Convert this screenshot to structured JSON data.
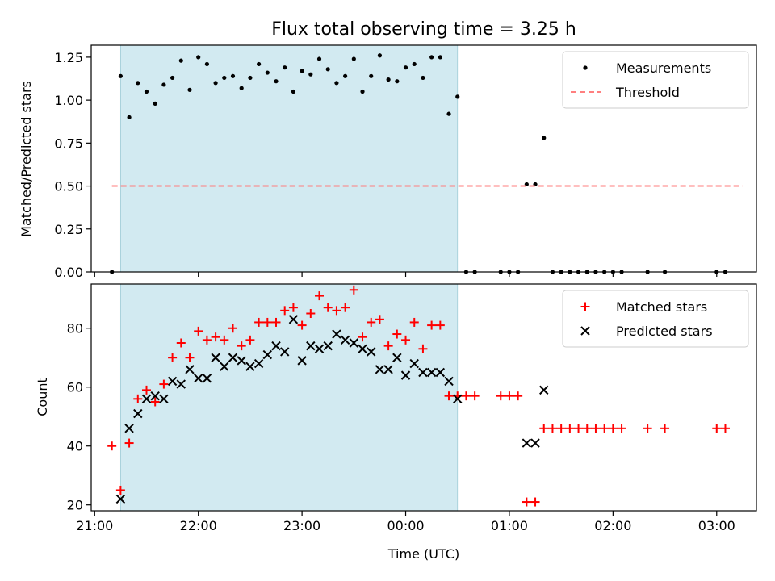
{
  "chart_data": [
    {
      "type": "scatter",
      "title": "Flux total observing time = 3.25 h",
      "ylabel": "Matched/Predicted stars",
      "ylim": [
        0,
        1.32
      ],
      "yticks": [
        0.0,
        0.25,
        0.5,
        0.75,
        1.0,
        1.25
      ],
      "ytick_labels": [
        "0.00",
        "0.25",
        "0.50",
        "0.75",
        "1.00",
        "1.25"
      ],
      "xlim": [
        "20:58",
        "03:23"
      ],
      "xticks": [
        "21:00",
        "22:00",
        "23:00",
        "00:00",
        "01:00",
        "02:00",
        "03:00"
      ],
      "xtick_labels": [],
      "grid": false,
      "legend": "upper right",
      "shaded_interval": {
        "x0": "21:15",
        "x1": "00:30",
        "color": "#add8e6"
      },
      "series": [
        {
          "name": "Measurements",
          "marker": "dot",
          "color": "#000000",
          "x": [
            "21:10",
            "21:15",
            "21:20",
            "21:25",
            "21:30",
            "21:35",
            "21:40",
            "21:45",
            "21:50",
            "21:55",
            "22:00",
            "22:05",
            "22:10",
            "22:15",
            "22:20",
            "22:25",
            "22:30",
            "22:35",
            "22:40",
            "22:45",
            "22:50",
            "22:55",
            "23:00",
            "23:05",
            "23:10",
            "23:15",
            "23:20",
            "23:25",
            "23:30",
            "23:35",
            "23:40",
            "23:45",
            "23:50",
            "23:55",
            "00:00",
            "00:05",
            "00:10",
            "00:15",
            "00:20",
            "00:25",
            "00:30",
            "00:35",
            "00:40",
            "00:55",
            "01:00",
            "01:05",
            "01:10",
            "01:15",
            "01:20",
            "01:25",
            "01:30",
            "01:35",
            "01:40",
            "01:45",
            "01:50",
            "01:55",
            "02:00",
            "02:05",
            "02:20",
            "02:30",
            "03:00",
            "03:05"
          ],
          "y": [
            0.0,
            1.14,
            0.9,
            1.1,
            1.05,
            0.98,
            1.09,
            1.13,
            1.23,
            1.06,
            1.25,
            1.21,
            1.1,
            1.13,
            1.14,
            1.07,
            1.13,
            1.21,
            1.16,
            1.11,
            1.19,
            1.05,
            1.17,
            1.15,
            1.24,
            1.18,
            1.1,
            1.14,
            1.24,
            1.05,
            1.14,
            1.26,
            1.12,
            1.11,
            1.19,
            1.21,
            1.13,
            1.25,
            1.25,
            0.92,
            1.02,
            0.0,
            0.0,
            0.0,
            0.0,
            0.0,
            0.51,
            0.51,
            0.78,
            0.0,
            0.0,
            0.0,
            0.0,
            0.0,
            0.0,
            0.0,
            0.0,
            0.0,
            0.0,
            0.0,
            0.0,
            0.0
          ]
        },
        {
          "name": "Threshold",
          "marker": "dashed-line",
          "color": "#ff7f7f",
          "x": [
            "21:10",
            "03:15"
          ],
          "y": [
            0.5,
            0.5
          ]
        }
      ]
    },
    {
      "type": "scatter",
      "title": "",
      "xlabel": "Time (UTC)",
      "ylabel": "Count",
      "ylim": [
        18,
        95
      ],
      "yticks": [
        20,
        40,
        60,
        80
      ],
      "ytick_labels": [
        "20",
        "40",
        "60",
        "80"
      ],
      "xlim": [
        "20:58",
        "03:23"
      ],
      "xticks": [
        "21:00",
        "22:00",
        "23:00",
        "00:00",
        "01:00",
        "02:00",
        "03:00"
      ],
      "xtick_labels": [
        "21:00",
        "22:00",
        "23:00",
        "00:00",
        "01:00",
        "02:00",
        "03:00"
      ],
      "grid": false,
      "legend": "upper right",
      "shaded_interval": {
        "x0": "21:15",
        "x1": "00:30",
        "color": "#add8e6"
      },
      "series": [
        {
          "name": "Matched stars",
          "marker": "plus",
          "color": "#ff0000",
          "x": [
            "21:10",
            "21:15",
            "21:20",
            "21:25",
            "21:30",
            "21:35",
            "21:40",
            "21:45",
            "21:50",
            "21:55",
            "22:00",
            "22:05",
            "22:10",
            "22:15",
            "22:20",
            "22:25",
            "22:30",
            "22:35",
            "22:40",
            "22:45",
            "22:50",
            "22:55",
            "23:00",
            "23:05",
            "23:10",
            "23:15",
            "23:20",
            "23:25",
            "23:30",
            "23:35",
            "23:40",
            "23:45",
            "23:50",
            "23:55",
            "00:00",
            "00:05",
            "00:10",
            "00:15",
            "00:20",
            "00:25",
            "00:30",
            "00:35",
            "00:40",
            "00:55",
            "01:00",
            "01:05",
            "01:10",
            "01:15",
            "01:20",
            "01:25",
            "01:30",
            "01:35",
            "01:40",
            "01:45",
            "01:50",
            "01:55",
            "02:00",
            "02:05",
            "02:20",
            "02:30",
            "03:00",
            "03:05"
          ],
          "y": [
            40,
            25,
            41,
            56,
            59,
            55,
            61,
            70,
            75,
            70,
            79,
            76,
            77,
            76,
            80,
            74,
            76,
            82,
            82,
            82,
            86,
            87,
            81,
            85,
            91,
            87,
            86,
            87,
            93,
            77,
            82,
            83,
            74,
            78,
            76,
            82,
            73,
            81,
            81,
            57,
            57,
            57,
            57,
            57,
            57,
            57,
            21,
            21,
            46,
            46,
            46,
            46,
            46,
            46,
            46,
            46,
            46,
            46,
            46,
            46,
            46,
            46
          ]
        },
        {
          "name": "Predicted stars",
          "marker": "x",
          "color": "#000000",
          "x": [
            "21:15",
            "21:20",
            "21:25",
            "21:30",
            "21:35",
            "21:40",
            "21:45",
            "21:50",
            "21:55",
            "22:00",
            "22:05",
            "22:10",
            "22:15",
            "22:20",
            "22:25",
            "22:30",
            "22:35",
            "22:40",
            "22:45",
            "22:50",
            "22:55",
            "23:00",
            "23:05",
            "23:10",
            "23:15",
            "23:20",
            "23:25",
            "23:30",
            "23:35",
            "23:40",
            "23:45",
            "23:50",
            "23:55",
            "00:00",
            "00:05",
            "00:10",
            "00:15",
            "00:20",
            "00:25",
            "00:30",
            "01:10",
            "01:15",
            "01:20"
          ],
          "y": [
            22,
            46,
            51,
            56,
            57,
            56,
            62,
            61,
            66,
            63,
            63,
            70,
            67,
            70,
            69,
            67,
            68,
            71,
            74,
            72,
            83,
            69,
            74,
            73,
            74,
            78,
            76,
            75,
            73,
            72,
            66,
            66,
            70,
            64,
            68,
            65,
            65,
            65,
            62,
            56,
            41,
            41,
            59
          ]
        }
      ]
    }
  ]
}
